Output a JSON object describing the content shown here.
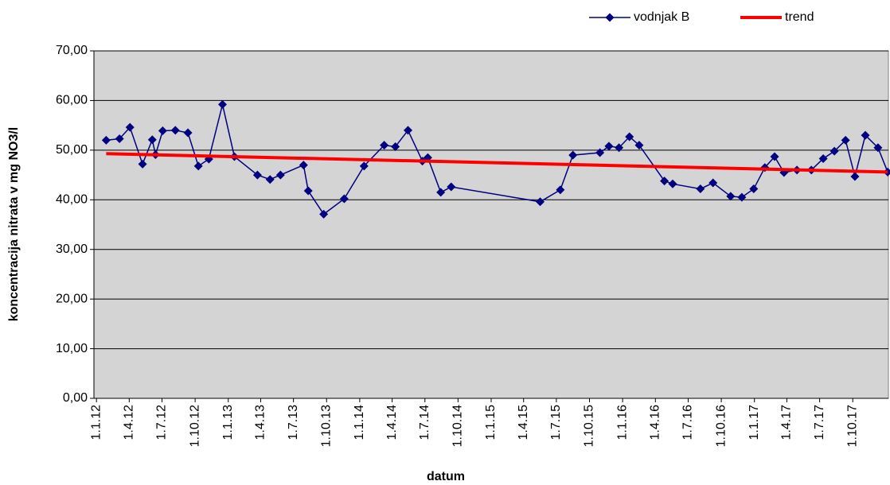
{
  "chart_data": {
    "type": "line",
    "x_label": "datum",
    "y_label": "koncentracija nitrata v mg NO3/l",
    "series": [
      {
        "name": "vodnjak B",
        "color": "#000080",
        "marker": "diamond",
        "x": [
          "2012-01-28",
          "2012-03-05",
          "2012-04-03",
          "2012-05-08",
          "2012-06-04",
          "2012-06-13",
          "2012-07-03",
          "2012-08-07",
          "2012-09-11",
          "2012-10-10",
          "2012-11-08",
          "2012-12-16",
          "2013-01-18",
          "2013-03-23",
          "2013-04-27",
          "2013-05-26",
          "2013-07-29",
          "2013-08-11",
          "2013-09-23",
          "2013-11-19",
          "2014-01-13",
          "2014-03-10",
          "2014-04-10",
          "2014-05-15",
          "2014-06-24",
          "2014-07-09",
          "2014-08-14",
          "2014-09-12",
          "2015-05-17",
          "2015-07-12",
          "2015-08-16",
          "2015-10-30",
          "2015-11-24",
          "2015-12-22",
          "2016-01-20",
          "2016-02-16",
          "2016-04-26",
          "2016-05-19",
          "2016-08-04",
          "2016-09-08",
          "2016-10-27",
          "2016-11-27",
          "2016-12-30",
          "2017-01-30",
          "2017-02-26",
          "2017-03-24",
          "2017-04-29",
          "2017-06-08",
          "2017-07-11",
          "2017-08-11",
          "2017-09-11",
          "2017-10-07",
          "2017-11-05",
          "2017-12-10",
          "2018-01-06"
        ],
        "values": [
          52.0,
          52.3,
          54.6,
          47.2,
          52.1,
          49.1,
          53.9,
          54.0,
          53.5,
          46.8,
          48.2,
          59.2,
          48.7,
          45.0,
          44.1,
          45.0,
          47.0,
          41.8,
          37.1,
          40.2,
          46.8,
          51.0,
          50.7,
          54.0,
          47.8,
          48.5,
          41.5,
          42.6,
          39.6,
          42.0,
          49.0,
          49.5,
          50.8,
          50.5,
          52.7,
          51.0,
          43.8,
          43.2,
          42.2,
          43.4,
          40.7,
          40.5,
          42.2,
          46.5,
          48.7,
          45.5,
          46.0,
          46.0,
          48.3,
          49.8,
          52.0,
          44.7,
          53.0,
          50.5,
          45.6
        ]
      },
      {
        "name": "trend",
        "color": "#ff0000",
        "marker": "none",
        "x": [
          "2012-01-28",
          "2018-01-06"
        ],
        "values": [
          49.3,
          45.6
        ]
      }
    ],
    "xlim": [
      "2011-12-25",
      "2018-01-08"
    ],
    "xticks": [
      {
        "value": "2012-01-01",
        "label": "1.1.12"
      },
      {
        "value": "2012-04-01",
        "label": "1.4.12"
      },
      {
        "value": "2012-07-01",
        "label": "1.7.12"
      },
      {
        "value": "2012-10-01",
        "label": "1.10.12"
      },
      {
        "value": "2013-01-01",
        "label": "1.1.13"
      },
      {
        "value": "2013-04-01",
        "label": "1.4.13"
      },
      {
        "value": "2013-07-01",
        "label": "1.7.13"
      },
      {
        "value": "2013-10-01",
        "label": "1.10.13"
      },
      {
        "value": "2014-01-01",
        "label": "1.1.14"
      },
      {
        "value": "2014-04-01",
        "label": "1.4.14"
      },
      {
        "value": "2014-07-01",
        "label": "1.7.14"
      },
      {
        "value": "2014-10-01",
        "label": "1.10.14"
      },
      {
        "value": "2015-01-01",
        "label": "1.1.15"
      },
      {
        "value": "2015-04-01",
        "label": "1.4.15"
      },
      {
        "value": "2015-07-01",
        "label": "1.7.15"
      },
      {
        "value": "2015-10-01",
        "label": "1.10.15"
      },
      {
        "value": "2016-01-01",
        "label": "1.1.16"
      },
      {
        "value": "2016-04-01",
        "label": "1.4.16"
      },
      {
        "value": "2016-07-01",
        "label": "1.7.16"
      },
      {
        "value": "2016-10-01",
        "label": "1.10.16"
      },
      {
        "value": "2017-01-01",
        "label": "1.1.17"
      },
      {
        "value": "2017-04-01",
        "label": "1.4.17"
      },
      {
        "value": "2017-07-01",
        "label": "1.7.17"
      },
      {
        "value": "2017-10-01",
        "label": "1.10.17"
      }
    ],
    "ylim": [
      0,
      70
    ],
    "yticks": [
      {
        "value": 0,
        "label": "0,00"
      },
      {
        "value": 10,
        "label": "10,00"
      },
      {
        "value": 20,
        "label": "20,00"
      },
      {
        "value": 30,
        "label": "30,00"
      },
      {
        "value": 40,
        "label": "40,00"
      },
      {
        "value": 50,
        "label": "50,00"
      },
      {
        "value": 60,
        "label": "60,00"
      },
      {
        "value": 70,
        "label": "70,00"
      }
    ],
    "grid": true,
    "legend": "top-right"
  }
}
